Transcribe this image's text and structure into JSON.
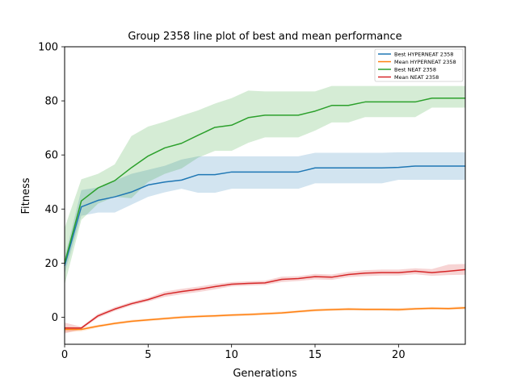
{
  "chart_data": {
    "type": "line",
    "title": "Group 2358 line plot of best and mean performance",
    "xlabel": "Generations",
    "ylabel": "Fitness",
    "xlim": [
      0,
      24
    ],
    "ylim": [
      -10,
      100
    ],
    "xticks": [
      0,
      5,
      10,
      15,
      20
    ],
    "yticks": [
      0,
      20,
      40,
      60,
      80,
      100
    ],
    "grid": false,
    "legend_position": "top-right",
    "x": [
      0,
      1,
      2,
      3,
      4,
      5,
      6,
      7,
      8,
      9,
      10,
      11,
      12,
      13,
      14,
      15,
      16,
      17,
      18,
      19,
      20,
      21,
      22,
      23,
      24
    ],
    "series": [
      {
        "name": "Best HYPERNEAT 2358",
        "color": "#1f77b4",
        "values": [
          19,
          40.8,
          43.2,
          44.5,
          46.3,
          48.9,
          50,
          50.7,
          52.7,
          52.7,
          53.7,
          53.7,
          53.7,
          53.7,
          53.7,
          55.2,
          55.2,
          55.2,
          55.2,
          55.2,
          55.4,
          55.9,
          55.9,
          55.9,
          55.9
        ],
        "band_low": [
          16,
          37.5,
          38.7,
          38.7,
          41.6,
          44.5,
          46.2,
          47.5,
          46,
          46,
          47.5,
          47.5,
          47.5,
          47.5,
          47.5,
          49.5,
          49.5,
          49.5,
          49.5,
          49.5,
          50.8,
          50.8,
          50.8,
          50.8,
          50.8
        ],
        "band_high": [
          22,
          47,
          48,
          50.5,
          53,
          54.5,
          56,
          58.3,
          59.5,
          59.5,
          59.5,
          59.5,
          59.5,
          59.5,
          59.5,
          60.8,
          60.8,
          60.8,
          60.8,
          60.8,
          61,
          61,
          61,
          61,
          61
        ]
      },
      {
        "name": "Mean HYPERNEAT 2358",
        "color": "#ff7f0e",
        "values": [
          -4.5,
          -4.5,
          -3.3,
          -2.3,
          -1.5,
          -1,
          -0.5,
          0,
          0.3,
          0.5,
          0.8,
          1,
          1.3,
          1.6,
          2.1,
          2.6,
          2.8,
          3,
          2.9,
          2.9,
          2.8,
          3.1,
          3.3,
          3.2,
          3.5
        ],
        "band_low": [
          -5.5,
          -5.2,
          -3.8,
          -2.8,
          -2,
          -1.5,
          -1,
          -0.5,
          -0.2,
          0,
          0.3,
          0.5,
          0.8,
          1.1,
          1.6,
          2.1,
          2.3,
          2.5,
          2.4,
          2.4,
          2.2,
          2.6,
          2.8,
          2.7,
          2.9
        ],
        "band_high": [
          -3.5,
          -3.8,
          -2.8,
          -1.8,
          -1,
          -0.5,
          0,
          0.5,
          0.8,
          1,
          1.3,
          1.5,
          1.8,
          2.1,
          2.6,
          3.1,
          3.3,
          3.5,
          3.4,
          3.4,
          3.4,
          3.6,
          3.8,
          3.7,
          4.1
        ]
      },
      {
        "name": "Best NEAT 2358",
        "color": "#2ca02c",
        "values": [
          20,
          43,
          47.8,
          50.5,
          55.3,
          59.6,
          62.6,
          64.3,
          67.3,
          70.2,
          71,
          73.8,
          74.7,
          74.7,
          74.7,
          76.2,
          78.3,
          78.3,
          79.6,
          79.6,
          79.6,
          79.6,
          81,
          81,
          81
        ],
        "band_low": [
          12,
          36,
          42,
          44.5,
          44,
          50,
          53,
          55,
          59,
          61.5,
          61.5,
          64.5,
          66.5,
          66.5,
          66.5,
          69,
          72,
          72,
          74,
          74,
          74,
          74,
          77.5,
          77.5,
          77.5
        ],
        "band_high": [
          33,
          51,
          53,
          56.5,
          67,
          70.5,
          72.3,
          74.5,
          76.5,
          79,
          81,
          83.8,
          83.5,
          83.5,
          83.5,
          83.5,
          85.5,
          85.5,
          85.5,
          85.5,
          85.5,
          85.5,
          85.5,
          85.5,
          85.5
        ]
      },
      {
        "name": "Mean NEAT 2358",
        "color": "#d62728",
        "values": [
          -4,
          -4,
          0.5,
          3,
          5,
          6.5,
          8.5,
          9.5,
          10.3,
          11.3,
          12.2,
          12.5,
          12.7,
          14,
          14.3,
          15,
          14.8,
          15.8,
          16.3,
          16.5,
          16.5,
          17,
          16.5,
          17,
          17.6
        ],
        "band_low": [
          -6,
          -4.5,
          -0.2,
          2.3,
          4.3,
          5.8,
          7.5,
          8.5,
          9.3,
          10.3,
          11.4,
          11.7,
          11.9,
          13,
          13.4,
          14,
          13.8,
          14.8,
          15.2,
          15.4,
          15.4,
          15.9,
          15.3,
          15.6,
          15.7
        ],
        "band_high": [
          -2,
          -3.5,
          1.2,
          3.7,
          5.7,
          7.2,
          9.5,
          10.5,
          11.3,
          12.3,
          13,
          13.3,
          13.5,
          15,
          15.2,
          16,
          15.8,
          16.8,
          17.4,
          17.6,
          17.6,
          18.1,
          17.8,
          19.5,
          19.7
        ]
      }
    ]
  }
}
